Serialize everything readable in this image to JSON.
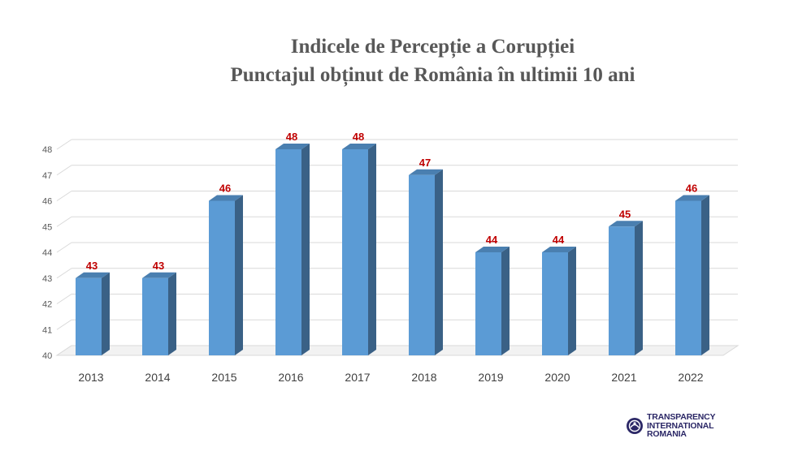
{
  "chart_data": {
    "type": "bar",
    "title": [
      "Indicele de Percepție a Corupției",
      "Punctajul obținut de România în ultimii 10 ani"
    ],
    "categories": [
      "2013",
      "2014",
      "2015",
      "2016",
      "2017",
      "2018",
      "2019",
      "2020",
      "2021",
      "2022"
    ],
    "values": [
      43,
      43,
      46,
      48,
      48,
      47,
      44,
      44,
      45,
      46
    ],
    "ylim": [
      40,
      48
    ],
    "yticks": [
      "40",
      "41",
      "42",
      "43",
      "44",
      "45",
      "46",
      "47",
      "48"
    ],
    "grid": true,
    "style": "3d-column",
    "data_labels": true,
    "colors": {
      "bar_front": "#5b9bd5",
      "bar_side": "#3a6186",
      "bar_top": "#4a7fb0",
      "data_label": "#c00000",
      "grid": "#d9d9d9"
    }
  },
  "logo": {
    "lines": [
      "TRANSPARENCY",
      "INTERNATIONAL",
      "ROMANIA"
    ],
    "icon": "globe-logo-icon"
  }
}
